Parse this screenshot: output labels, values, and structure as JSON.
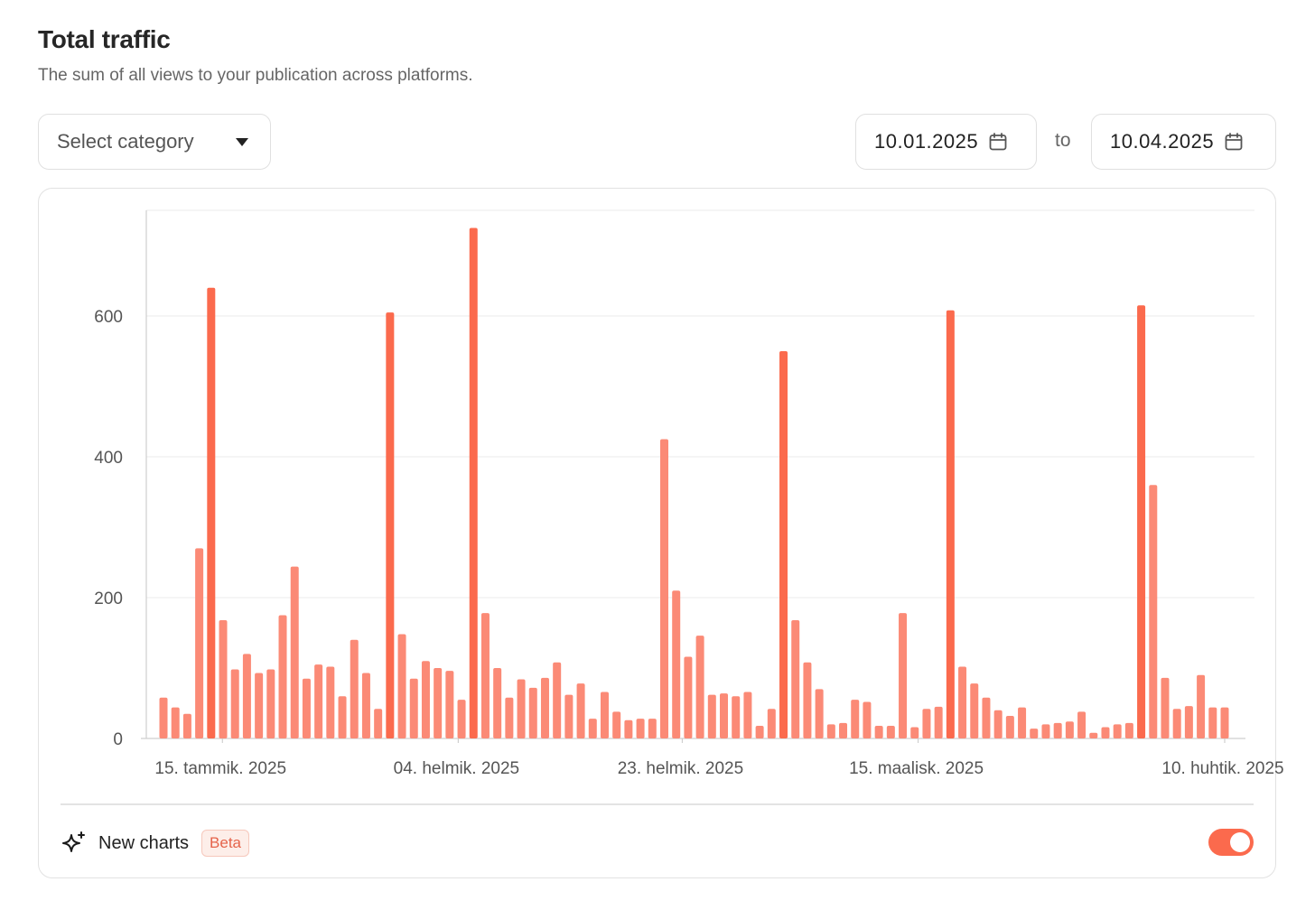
{
  "header": {
    "title": "Total traffic",
    "subtitle": "The sum of all views to your publication across platforms."
  },
  "filters": {
    "category_placeholder": "Select category",
    "date_from": "10.01.2025",
    "to_label": "to",
    "date_to": "10.04.2025",
    "calendar_icon": "calendar-icon",
    "caret_icon": "caret-down-icon"
  },
  "footer": {
    "label": "New charts",
    "badge": "Beta",
    "toggle_on": true,
    "sparkle_icon": "sparkle-icon"
  },
  "colors": {
    "bar": "#fb8a76",
    "bar_peak": "#fb6a4d",
    "accent": "#fb6a4d"
  },
  "chart_data": {
    "type": "bar",
    "x_start": "10.01.2025",
    "x_end": "10.04.2025",
    "x_tick_labels": [
      "15. tammik. 2025",
      "04. helmik. 2025",
      "23. helmik. 2025",
      "15. maalisk. 2025",
      "10. huhtik. 2025"
    ],
    "x_tick_dates": [
      "15.01.2025",
      "04.02.2025",
      "23.02.2025",
      "15.03.2025",
      "10.04.2025"
    ],
    "y_ticks": [
      0,
      200,
      400,
      600
    ],
    "ylim": [
      0,
      750
    ],
    "grid": true,
    "values": [
      58,
      44,
      35,
      270,
      640,
      168,
      98,
      120,
      93,
      98,
      175,
      244,
      85,
      105,
      102,
      60,
      140,
      93,
      42,
      605,
      148,
      85,
      110,
      100,
      96,
      55,
      725,
      178,
      100,
      58,
      84,
      72,
      86,
      108,
      62,
      78,
      28,
      66,
      38,
      26,
      28,
      28,
      425,
      210,
      116,
      146,
      62,
      64,
      60,
      66,
      18,
      42,
      550,
      168,
      108,
      70,
      20,
      22,
      55,
      52,
      18,
      18,
      178,
      16,
      42,
      45,
      608,
      102,
      78,
      58,
      40,
      32,
      44,
      14,
      20,
      22,
      24,
      38,
      8,
      16,
      20,
      22,
      615,
      360,
      86,
      42,
      46,
      90,
      44,
      44
    ]
  }
}
